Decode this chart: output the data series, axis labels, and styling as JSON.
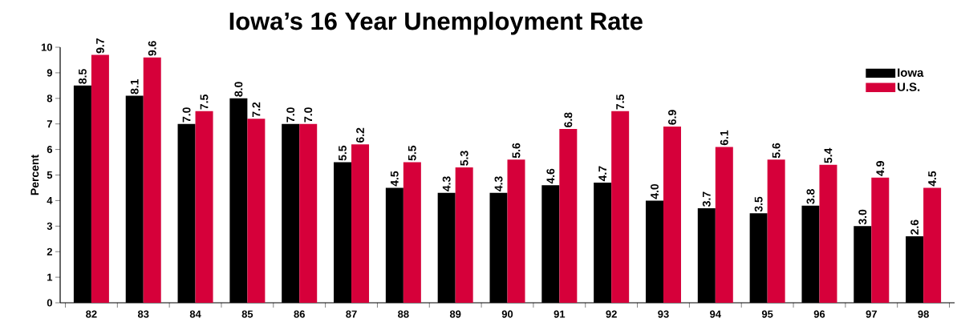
{
  "chart_data": {
    "type": "bar",
    "title": "Iowa’s 16 Year Unemployment Rate",
    "ylabel": "Percent",
    "categories": [
      "82",
      "83",
      "84",
      "85",
      "86",
      "87",
      "88",
      "89",
      "90",
      "91",
      "92",
      "93",
      "94",
      "95",
      "96",
      "97",
      "98"
    ],
    "series": [
      {
        "name": "Iowa",
        "color": "#000000",
        "values": [
          8.5,
          8.1,
          7.0,
          8.0,
          7.0,
          5.5,
          4.5,
          4.3,
          4.3,
          4.6,
          4.7,
          4.0,
          3.7,
          3.5,
          3.8,
          3.0,
          2.6
        ],
        "value_labels": [
          "8.5",
          "8.1",
          "7.0",
          "8.0",
          "7.0",
          "5.5",
          "4.5",
          "4.3",
          "4.3",
          "4.6",
          "4.7",
          "4.0",
          "3.7",
          "3.5",
          "3.8",
          "3.0",
          "2.6"
        ]
      },
      {
        "name": "U.S.",
        "color": "#d6003a",
        "values": [
          9.7,
          9.6,
          7.5,
          7.2,
          7.0,
          6.2,
          5.5,
          5.3,
          5.6,
          6.8,
          7.5,
          6.9,
          6.1,
          5.6,
          5.4,
          4.9,
          4.5
        ],
        "value_labels": [
          "9.7",
          "9.6",
          "7.5",
          "7.2",
          "7.0",
          "6.2",
          "5.5",
          "5.3",
          "5.6",
          "6.8",
          "7.5",
          "6.9",
          "6.1",
          "5.6",
          "5.4",
          "4.9",
          "4.5"
        ]
      }
    ],
    "ylim": [
      0,
      10
    ],
    "yticks": [
      0,
      1,
      2,
      3,
      4,
      5,
      6,
      7,
      8,
      9,
      10
    ],
    "grid": false,
    "legend": "top right"
  }
}
